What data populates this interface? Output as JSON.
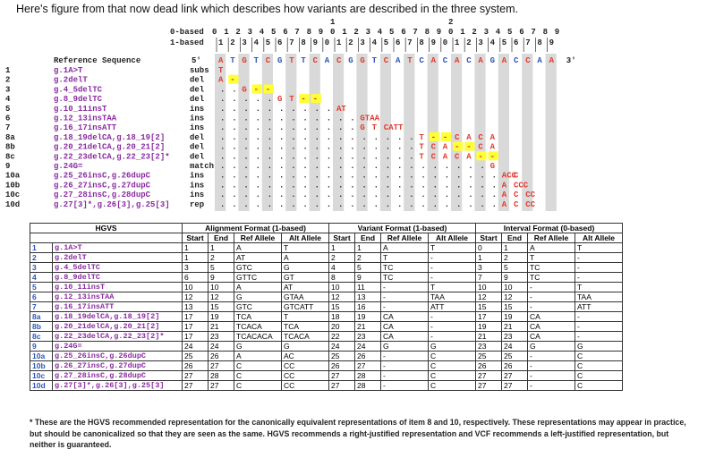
{
  "intro": "Here's figure from that now dead link which describes how variants are described in the three system.",
  "coords": {
    "zero_label": "0-based",
    "one_label": "1-based",
    "tens_zero": [
      "1",
      "2"
    ],
    "ones_zero": [
      "0",
      "1",
      "2",
      "3",
      "4",
      "5",
      "6",
      "7",
      "8",
      "9",
      "0",
      "1",
      "2",
      "3",
      "4",
      "5",
      "6",
      "7",
      "8",
      "9",
      "0",
      "1",
      "2",
      "3",
      "4",
      "5",
      "6",
      "7",
      "8",
      "9"
    ],
    "ones_one": [
      "1",
      "2",
      "3",
      "4",
      "5",
      "6",
      "7",
      "8",
      "9",
      "0",
      "1",
      "2",
      "3",
      "4",
      "5",
      "6",
      "7",
      "8",
      "9",
      "0",
      "1",
      "2",
      "3",
      "4",
      "5",
      "6",
      "7",
      "8",
      "9"
    ]
  },
  "reference": {
    "label": "Reference Sequence",
    "five_prime": "5'",
    "three_prime": "3'",
    "bases": [
      "A",
      "T",
      "G",
      "T",
      "C",
      "G",
      "T",
      "T",
      "C",
      "A",
      "C",
      "G",
      "G",
      "T",
      "C",
      "A",
      "T",
      "C",
      "A",
      "C",
      "A",
      "C",
      "A",
      "G",
      "A",
      "C",
      "C",
      "A",
      "A"
    ]
  },
  "alignment_rows": [
    {
      "num": "1",
      "hgvs": "g.1A>T",
      "type": "subs",
      "track": "T"
    },
    {
      "num": "2",
      "hgvs": "g.2delT",
      "type": "del",
      "track": "A -"
    },
    {
      "num": "3",
      "hgvs": "g.4_5delTC",
      "type": "del",
      "track": ". . G - -"
    },
    {
      "num": "4",
      "hgvs": "g.8_9delTC",
      "type": "del",
      "track": ". . . . . G T - -"
    },
    {
      "num": "5",
      "hgvs": "g.10_11insT",
      "type": "ins",
      "track": "AT"
    },
    {
      "num": "6",
      "hgvs": "g.12_13insTAA",
      "type": "ins",
      "track": "GTAA"
    },
    {
      "num": "7",
      "hgvs": "g.16_17insATT",
      "type": "ins",
      "track": "G T CATT"
    },
    {
      "num": "8a",
      "hgvs": "g.18_19delCA,g.18_19[2]",
      "type": "del",
      "track": "T - - C A C A"
    },
    {
      "num": "8b",
      "hgvs": "g.20_21delCA,g.20_21[2]",
      "type": "del",
      "track": "T C A - - C A"
    },
    {
      "num": "8c",
      "hgvs": "g.22_23delCA,g.22_23[2]*",
      "type": "del",
      "track": "T C A C A - -"
    },
    {
      "num": "9",
      "hgvs": "g.24G=",
      "type": "match",
      "track": "G"
    },
    {
      "num": "10a",
      "hgvs": "g.25_26insC,g.26dupC",
      "type": "ins",
      "track": "ACC C"
    },
    {
      "num": "10b",
      "hgvs": "g.26_27insC,g.27dupC",
      "type": "ins",
      "track": "A CCC"
    },
    {
      "num": "10c",
      "hgvs": "g.27_28insC,g.28dupC",
      "type": "ins",
      "track": "A C CC"
    },
    {
      "num": "10d",
      "hgvs": "g.27[3]*,g.26[3],g.25[3]",
      "type": "rep",
      "track": "A C CC"
    }
  ],
  "table": {
    "group_headers": [
      "HGVS",
      "Alignment Format (1-based)",
      "Variant Format (1-based)",
      "Interval Format (0-based)"
    ],
    "sub_headers": [
      "Start",
      "End",
      "Ref Allele",
      "Alt Allele",
      "Start",
      "End",
      "Ref Allele",
      "Alt Allele",
      "Start",
      "End",
      "Ref Allele",
      "Alt Allele"
    ],
    "rows": [
      [
        "1",
        "g.1A>T",
        "1",
        "1",
        "A",
        "T",
        "1",
        "1",
        "A",
        "T",
        "0",
        "1",
        "A",
        "T"
      ],
      [
        "2",
        "g.2delT",
        "1",
        "2",
        "AT",
        "A",
        "2",
        "2",
        "T",
        "-",
        "1",
        "2",
        "T",
        "-"
      ],
      [
        "3",
        "g.4_5delTC",
        "3",
        "5",
        "GTC",
        "G",
        "4",
        "5",
        "TC",
        "-",
        "3",
        "5",
        "TC",
        "-"
      ],
      [
        "4",
        "g.8_9delTC",
        "6",
        "9",
        "GTTC",
        "GT",
        "8",
        "9",
        "TC",
        "-",
        "7",
        "9",
        "TC",
        "-"
      ],
      [
        "5",
        "g.10_11insT",
        "10",
        "10",
        "A",
        "AT",
        "10",
        "11",
        "-",
        "T",
        "10",
        "10",
        "-",
        "T"
      ],
      [
        "6",
        "g.12_13insTAA",
        "12",
        "12",
        "G",
        "GTAA",
        "12",
        "13",
        "-",
        "TAA",
        "12",
        "12",
        "-",
        "TAA"
      ],
      [
        "7",
        "g.16_17insATT",
        "13",
        "15",
        "GTC",
        "GTCATT",
        "15",
        "16",
        "-",
        "ATT",
        "15",
        "15",
        "-",
        "ATT"
      ],
      [
        "8a",
        "g.18_19delCA,g.18_19[2]",
        "17",
        "19",
        "TCA",
        "T",
        "18",
        "19",
        "CA",
        "-",
        "17",
        "19",
        "CA",
        "-"
      ],
      [
        "8b",
        "g.20_21delCA,g.20_21[2]",
        "17",
        "21",
        "TCACA",
        "TCA",
        "20",
        "21",
        "CA",
        "-",
        "19",
        "21",
        "CA",
        "-"
      ],
      [
        "8c",
        "g.22_23delCA,g.22_23[2]*",
        "17",
        "23",
        "TCACACA",
        "TCACA",
        "22",
        "23",
        "CA",
        "-",
        "21",
        "23",
        "CA",
        "-"
      ],
      [
        "9",
        "g.24G=",
        "24",
        "24",
        "G",
        "G",
        "24",
        "24",
        "G",
        "G",
        "23",
        "24",
        "G",
        "G"
      ],
      [
        "10a",
        "g.25_26insC,g.26dupC",
        "25",
        "26",
        "A",
        "AC",
        "25",
        "26",
        "-",
        "C",
        "25",
        "25",
        "-",
        "C"
      ],
      [
        "10b",
        "g.26_27insC,g.27dupC",
        "26",
        "27",
        "C",
        "CC",
        "26",
        "27",
        "-",
        "C",
        "26",
        "26",
        "-",
        "C"
      ],
      [
        "10c",
        "g.27_28insC,g.28dupC",
        "27",
        "28",
        "C",
        "CC",
        "27",
        "28",
        "-",
        "C",
        "27",
        "27",
        "-",
        "C"
      ],
      [
        "10d",
        "g.27[3]*,g.26[3],g.25[3]",
        "27",
        "27",
        "C",
        "CC",
        "27",
        "28",
        "-",
        "C",
        "27",
        "27",
        "-",
        "C"
      ]
    ]
  },
  "footnote": "* These are the HGVS recommended representation for the canonically equivalent representations of item 8 and 10, respectively. These representations may appear in practice, but should be canonicalized so that they are seen as the same.  HGVS recommends a right-justified representation and VCF recommends a left-justified representation, but neither is guaranteed.",
  "colors": {
    "highlight": "#ffff33",
    "column_shade": "#d9d9d9",
    "ref_red": "#e23a2e",
    "id_blue": "#2a55b8",
    "hgvs_purple": "#8a2ba0"
  }
}
